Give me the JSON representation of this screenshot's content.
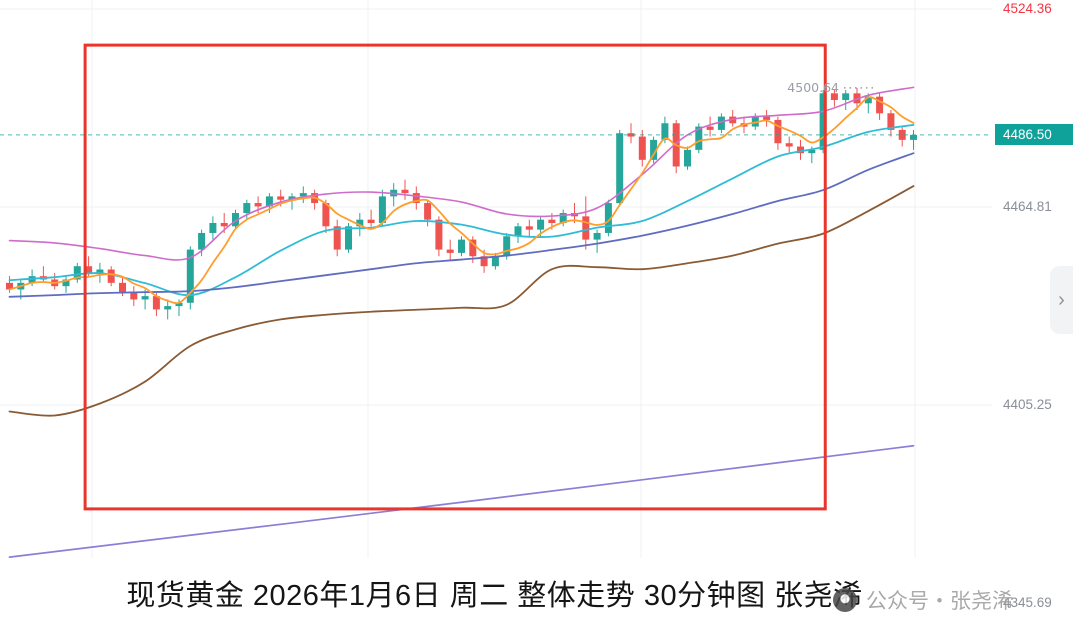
{
  "ui": {
    "caption": "现货黄金 2026年1月6日 周二 整体走势 30分钟图 张尧浠",
    "watermark": "公众号・张尧浠",
    "chevron_icon": "›",
    "axis_labels": [
      {
        "text": "4524.36",
        "price": 4524.36,
        "style": "high"
      },
      {
        "text": "4486.50",
        "price": 4486.5,
        "style": "current"
      },
      {
        "text": "4464.81",
        "price": 4464.81,
        "style": "normal"
      },
      {
        "text": "4405.25",
        "price": 4405.25,
        "style": "normal"
      },
      {
        "text": "4345.69",
        "price": 4345.69,
        "style": "normal"
      }
    ],
    "high_marker_label": "4500.64"
  },
  "chart_data": {
    "type": "candlestick",
    "title": "现货黄金 30分钟图",
    "instrument": "现货黄金",
    "timeframe": "30分钟",
    "date_label": "2026年1月6日 周二",
    "current_price": 4486.5,
    "session_high": 4500.64,
    "y_ticks": [
      4524.36,
      4464.81,
      4405.25,
      4345.69
    ],
    "ylim": [
      4345.69,
      4524.36
    ],
    "grid": true,
    "candles": [
      [
        4442,
        4444,
        4439,
        4440
      ],
      [
        4440,
        4443,
        4437,
        4442
      ],
      [
        4442,
        4446,
        4441,
        4444
      ],
      [
        4444,
        4447,
        4442,
        4443
      ],
      [
        4443,
        4445,
        4440,
        4441
      ],
      [
        4441,
        4444,
        4439,
        4443
      ],
      [
        4443,
        4448,
        4442,
        4447
      ],
      [
        4447,
        4450,
        4444,
        4445
      ],
      [
        4445,
        4448,
        4442,
        4446
      ],
      [
        4446,
        4447,
        4441,
        4442
      ],
      [
        4442,
        4444,
        4438,
        4439
      ],
      [
        4439,
        4441,
        4435,
        4437
      ],
      [
        4437,
        4440,
        4434,
        4438
      ],
      [
        4438,
        4439,
        4432,
        4434
      ],
      [
        4434,
        4437,
        4431,
        4435
      ],
      [
        4435,
        4437,
        4432,
        4436
      ],
      [
        4436,
        4453,
        4434,
        4452
      ],
      [
        4452,
        4458,
        4450,
        4457
      ],
      [
        4457,
        4462,
        4455,
        4460
      ],
      [
        4460,
        4463,
        4457,
        4459
      ],
      [
        4459,
        4464,
        4458,
        4463
      ],
      [
        4463,
        4467,
        4461,
        4466
      ],
      [
        4466,
        4468,
        4463,
        4465
      ],
      [
        4465,
        4469,
        4463,
        4468
      ],
      [
        4468,
        4470,
        4465,
        4467
      ],
      [
        4467,
        4469,
        4464,
        4468
      ],
      [
        4468,
        4471,
        4466,
        4469
      ],
      [
        4469,
        4470,
        4464,
        4466
      ],
      [
        4466,
        4467,
        4457,
        4459
      ],
      [
        4459,
        4461,
        4450,
        4452
      ],
      [
        4452,
        4460,
        4451,
        4459
      ],
      [
        4459,
        4463,
        4456,
        4461
      ],
      [
        4461,
        4464,
        4459,
        4460
      ],
      [
        4460,
        4470,
        4459,
        4468
      ],
      [
        4468,
        4472,
        4465,
        4470
      ],
      [
        4470,
        4473,
        4467,
        4469
      ],
      [
        4469,
        4471,
        4464,
        4466
      ],
      [
        4466,
        4467,
        4459,
        4461
      ],
      [
        4461,
        4462,
        4450,
        4452
      ],
      [
        4452,
        4455,
        4449,
        4451
      ],
      [
        4451,
        4456,
        4450,
        4455
      ],
      [
        4455,
        4456,
        4448,
        4450
      ],
      [
        4450,
        4452,
        4445,
        4447
      ],
      [
        4447,
        4451,
        4446,
        4450
      ],
      [
        4450,
        4457,
        4449,
        4456
      ],
      [
        4456,
        4460,
        4454,
        4459
      ],
      [
        4459,
        4461,
        4456,
        4458
      ],
      [
        4458,
        4462,
        4456,
        4461
      ],
      [
        4461,
        4463,
        4458,
        4460
      ],
      [
        4460,
        4464,
        4459,
        4463
      ],
      [
        4463,
        4466,
        4460,
        4462
      ],
      [
        4462,
        4468,
        4452,
        4455
      ],
      [
        4455,
        4458,
        4451,
        4457
      ],
      [
        4457,
        4467,
        4456,
        4466
      ],
      [
        4466,
        4488,
        4465,
        4487
      ],
      [
        4487,
        4490,
        4484,
        4486
      ],
      [
        4486,
        4488,
        4477,
        4479
      ],
      [
        4479,
        4486,
        4478,
        4485
      ],
      [
        4485,
        4492,
        4484,
        4490
      ],
      [
        4490,
        4491,
        4475,
        4477
      ],
      [
        4477,
        4483,
        4476,
        4482
      ],
      [
        4482,
        4490,
        4481,
        4489
      ],
      [
        4489,
        4492,
        4486,
        4488
      ],
      [
        4488,
        4493,
        4487,
        4492
      ],
      [
        4492,
        4494,
        4489,
        4490
      ],
      [
        4490,
        4492,
        4487,
        4489
      ],
      [
        4489,
        4493,
        4488,
        4492
      ],
      [
        4492,
        4494,
        4489,
        4491
      ],
      [
        4491,
        4492,
        4482,
        4484
      ],
      [
        4484,
        4486,
        4481,
        4483
      ],
      [
        4483,
        4485,
        4479,
        4481
      ],
      [
        4481,
        4483,
        4478,
        4482
      ],
      [
        4482,
        4500,
        4481,
        4499
      ],
      [
        4499,
        4500,
        4495,
        4497
      ],
      [
        4497,
        4500,
        4494,
        4499
      ],
      [
        4499,
        4500.64,
        4494,
        4496
      ],
      [
        4496,
        4499,
        4493,
        4498
      ],
      [
        4498,
        4499,
        4491,
        4493
      ],
      [
        4493,
        4494,
        4486,
        4488
      ],
      [
        4488,
        4489,
        4483,
        4485
      ],
      [
        4485,
        4488,
        4482,
        4486.5
      ]
    ],
    "overlays": [
      {
        "name": "upper-band-magenta",
        "color": "#cf6ccb",
        "width": 1.6,
        "step": 4,
        "values": [
          4454.7,
          4454.0,
          4452.3,
          4450.2,
          4449.6,
          4460.6,
          4466.3,
          4468.7,
          4469.3,
          4468.1,
          4466.3,
          4462.7,
          4462.1,
          4464.5,
          4474.6,
          4486.5,
          4491.2,
          4492.4,
          4493.6,
          4498.4,
          4500.8
        ]
      },
      {
        "name": "ma-cyan",
        "color": "#2fbcd6",
        "width": 1.8,
        "step": 4,
        "values": [
          4442.8,
          4443.7,
          4444.9,
          4441.9,
          4438.3,
          4443.7,
          4451.7,
          4457.7,
          4458.6,
          4460.6,
          4459.5,
          4456.5,
          4455.9,
          4458.6,
          4460.6,
          4466.6,
          4473.4,
          4480.0,
          4482.9,
          4487.4,
          4489.5
        ]
      },
      {
        "name": "ma-blue",
        "color": "#5f6cc0",
        "width": 1.8,
        "step": 4,
        "values": [
          4437.8,
          4438.3,
          4438.9,
          4439.2,
          4439.5,
          4440.7,
          4442.5,
          4444.3,
          4446.1,
          4447.9,
          4449.0,
          4450.2,
          4451.9,
          4453.8,
          4456.2,
          4459.2,
          4462.7,
          4466.6,
          4469.9,
          4476.0,
          4481.0
        ]
      },
      {
        "name": "lower-band-brown",
        "color": "#8a5a33",
        "width": 1.8,
        "step": 4,
        "values": [
          4403.3,
          4402.1,
          4405.7,
          4412.3,
          4423.0,
          4428.0,
          4431.0,
          4432.4,
          4433.3,
          4433.9,
          4434.5,
          4435.4,
          4446.1,
          4446.7,
          4446.1,
          4447.9,
          4450.2,
          4453.8,
          4456.8,
          4463.6,
          4471.1
        ]
      },
      {
        "name": "longterm-trend-purple",
        "color": "#8a7fd6",
        "width": 1.7,
        "step": 40,
        "values": [
          4359.5,
          4376.0,
          4393.0
        ]
      }
    ],
    "ma_orange": {
      "color": "#ff9e2c",
      "period": 5,
      "width": 1.8
    },
    "annotations": {
      "red_box": {
        "bar_start": 7,
        "bar_end": 72.5,
        "price_top": 4513.5,
        "price_bottom": 4374.0,
        "color": "#e8362d"
      },
      "high_marker": {
        "bar": 75,
        "price": 4500.64,
        "label": "4500.64"
      }
    },
    "colors": {
      "up": "#26a69a",
      "down": "#ef5350",
      "grid": "#edf0f3",
      "dashed_line": "#26a69a",
      "current_tag_bg": "#0fa29a",
      "axis_text": "#8a8e98",
      "axis_high_text": "#f23645",
      "high_label_text": "#9b9ea7"
    }
  }
}
